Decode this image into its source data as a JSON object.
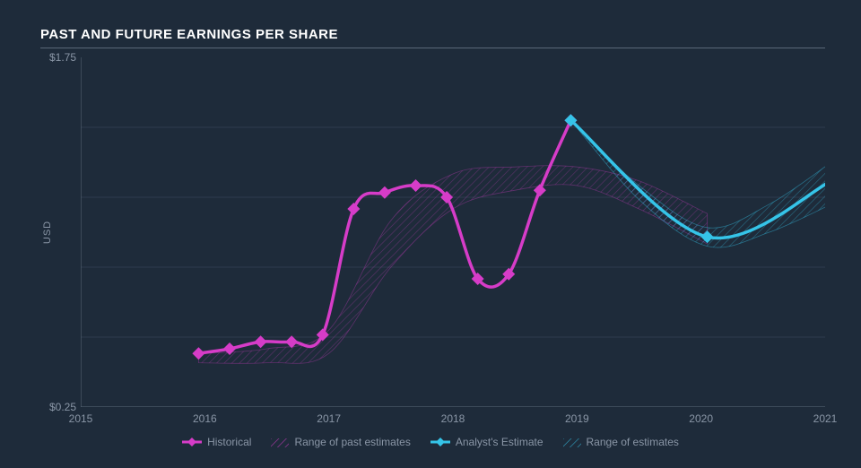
{
  "title": "PAST AND FUTURE EARNINGS PER SHARE",
  "chart": {
    "type": "line",
    "background_color": "#1e2b3a",
    "grid_color": "#2d3b4d",
    "axis_line_color": "#5a6878",
    "text_color": "#8a96a6",
    "ylabel": "USD",
    "xlim": [
      2015,
      2021
    ],
    "ylim": [
      0.25,
      1.75
    ],
    "yticks": [
      {
        "v": 0.25,
        "label": "$0.25"
      },
      {
        "v": 1.75,
        "label": "$1.75"
      }
    ],
    "xticks": [
      {
        "v": 2015,
        "label": "2015"
      },
      {
        "v": 2016,
        "label": "2016"
      },
      {
        "v": 2017,
        "label": "2017"
      },
      {
        "v": 2018,
        "label": "2018"
      },
      {
        "v": 2019,
        "label": "2019"
      },
      {
        "v": 2020,
        "label": "2020"
      },
      {
        "v": 2021,
        "label": "2021"
      }
    ],
    "grid_y": [
      0.55,
      0.85,
      1.15,
      1.45
    ],
    "historical": {
      "color": "#d63cc8",
      "line_width": 3.5,
      "marker": "diamond",
      "marker_size": 7,
      "points": [
        {
          "x": 2015.95,
          "y": 0.48
        },
        {
          "x": 2016.2,
          "y": 0.5
        },
        {
          "x": 2016.45,
          "y": 0.53
        },
        {
          "x": 2016.7,
          "y": 0.53
        },
        {
          "x": 2016.95,
          "y": 0.56
        },
        {
          "x": 2017.2,
          "y": 1.1
        },
        {
          "x": 2017.45,
          "y": 1.17
        },
        {
          "x": 2017.7,
          "y": 1.2
        },
        {
          "x": 2017.95,
          "y": 1.15
        },
        {
          "x": 2018.2,
          "y": 0.8
        },
        {
          "x": 2018.45,
          "y": 0.82
        },
        {
          "x": 2018.7,
          "y": 1.18
        },
        {
          "x": 2018.95,
          "y": 1.48
        }
      ]
    },
    "analyst": {
      "color": "#35c4e8",
      "line_width": 3.5,
      "marker": "diamond",
      "marker_size": 7,
      "points": [
        {
          "x": 2018.95,
          "y": 1.48
        },
        {
          "x": 2020.05,
          "y": 0.98
        },
        {
          "x": 2021.05,
          "y": 1.22
        }
      ]
    },
    "past_range": {
      "color": "#d63cc8",
      "opacity": 0.35,
      "upper": [
        {
          "x": 2015.95,
          "y": 0.48
        },
        {
          "x": 2016.5,
          "y": 0.5
        },
        {
          "x": 2017.0,
          "y": 0.58
        },
        {
          "x": 2017.5,
          "y": 1.05
        },
        {
          "x": 2018.0,
          "y": 1.25
        },
        {
          "x": 2018.5,
          "y": 1.28
        },
        {
          "x": 2019.0,
          "y": 1.28
        },
        {
          "x": 2019.5,
          "y": 1.22
        },
        {
          "x": 2020.05,
          "y": 1.08
        }
      ],
      "lower": [
        {
          "x": 2015.95,
          "y": 0.44
        },
        {
          "x": 2016.5,
          "y": 0.44
        },
        {
          "x": 2017.0,
          "y": 0.48
        },
        {
          "x": 2017.5,
          "y": 0.85
        },
        {
          "x": 2018.0,
          "y": 1.1
        },
        {
          "x": 2018.5,
          "y": 1.18
        },
        {
          "x": 2019.0,
          "y": 1.2
        },
        {
          "x": 2019.5,
          "y": 1.1
        },
        {
          "x": 2020.05,
          "y": 0.95
        }
      ]
    },
    "future_range": {
      "color": "#35c4e8",
      "opacity": 0.45,
      "upper": [
        {
          "x": 2018.95,
          "y": 1.48
        },
        {
          "x": 2019.5,
          "y": 1.2
        },
        {
          "x": 2020.05,
          "y": 1.02
        },
        {
          "x": 2020.55,
          "y": 1.12
        },
        {
          "x": 2021.05,
          "y": 1.3
        }
      ],
      "lower": [
        {
          "x": 2018.95,
          "y": 1.48
        },
        {
          "x": 2019.5,
          "y": 1.14
        },
        {
          "x": 2020.05,
          "y": 0.94
        },
        {
          "x": 2020.55,
          "y": 1.0
        },
        {
          "x": 2021.05,
          "y": 1.12
        }
      ]
    },
    "legend": {
      "historical": "Historical",
      "past_range": "Range of past estimates",
      "analyst": "Analyst's Estimate",
      "future_range": "Range of estimates"
    }
  }
}
